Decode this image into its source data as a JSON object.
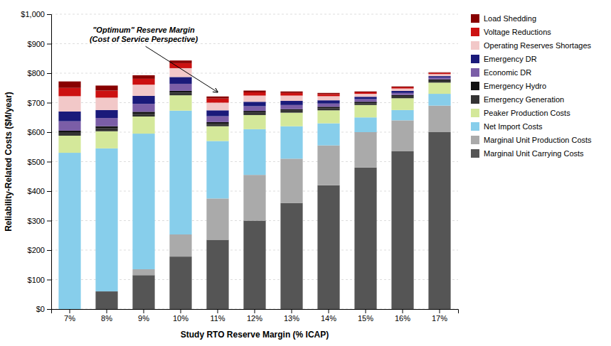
{
  "chart_data": {
    "type": "bar",
    "stacked": true,
    "categories": [
      "7%",
      "8%",
      "9%",
      "10%",
      "11%",
      "12%",
      "13%",
      "14%",
      "15%",
      "16%",
      "17%"
    ],
    "series": [
      {
        "name": "Marginal Unit Carrying Costs",
        "color": "#555555",
        "values": [
          0,
          60,
          115,
          178,
          235,
          300,
          360,
          420,
          480,
          535,
          600
        ]
      },
      {
        "name": "Marginal Unit Production Costs",
        "color": "#aaaaaa",
        "values": [
          0,
          0,
          20,
          75,
          140,
          155,
          150,
          135,
          120,
          105,
          90
        ]
      },
      {
        "name": "Net Import Costs",
        "color": "#87CEEB",
        "values": [
          530,
          485,
          460,
          420,
          195,
          155,
          110,
          75,
          50,
          35,
          40
        ]
      },
      {
        "name": "Peaker Production Costs",
        "color": "#d4e89a",
        "values": [
          58,
          58,
          58,
          52,
          50,
          48,
          46,
          44,
          42,
          40,
          38
        ]
      },
      {
        "name": "Emergency Generation",
        "color": "#333333",
        "values": [
          10,
          10,
          9,
          9,
          8,
          8,
          7,
          7,
          6,
          6,
          6
        ]
      },
      {
        "name": "Emergency Hydro",
        "color": "#111111",
        "values": [
          7,
          7,
          7,
          6,
          6,
          6,
          5,
          5,
          5,
          5,
          5
        ]
      },
      {
        "name": "Economic DR",
        "color": "#7b5ea7",
        "values": [
          32,
          28,
          27,
          24,
          20,
          16,
          14,
          11,
          9,
          7,
          6
        ]
      },
      {
        "name": "Emergency DR",
        "color": "#1a1a7a",
        "values": [
          33,
          27,
          27,
          23,
          20,
          15,
          14,
          11,
          8,
          7,
          5
        ]
      },
      {
        "name": "Operating Reserves Shortages",
        "color": "#f2c8c8",
        "values": [
          52,
          42,
          38,
          30,
          26,
          21,
          18,
          14,
          10,
          8,
          7
        ]
      },
      {
        "name": "Voltage Reductions",
        "color": "#cc1111",
        "values": [
          28,
          24,
          20,
          17,
          14,
          11,
          9,
          7,
          5,
          4,
          4
        ]
      },
      {
        "name": "Load Shedding",
        "color": "#880000",
        "values": [
          22,
          17,
          12,
          9,
          7,
          6,
          5,
          4,
          3,
          3,
          2
        ]
      }
    ],
    "xlabel": "Study RTO Reserve Margin (% ICAP)",
    "ylabel": "Reliability-Related Costs ($M/year)",
    "ylim": [
      0,
      1000
    ],
    "yticks": [
      {
        "value": 0,
        "label": "$0"
      },
      {
        "value": 100,
        "label": "$100"
      },
      {
        "value": 200,
        "label": "$200"
      },
      {
        "value": 300,
        "label": "$300"
      },
      {
        "value": 400,
        "label": "$400"
      },
      {
        "value": 500,
        "label": "$500"
      },
      {
        "value": 600,
        "label": "$600"
      },
      {
        "value": 700,
        "label": "$700"
      },
      {
        "value": 800,
        "label": "$800"
      },
      {
        "value": 900,
        "label": "$900"
      },
      {
        "value": 1000,
        "label": "$1,000"
      }
    ],
    "grid": true,
    "legend": "right",
    "annotations": [
      {
        "text": "\"Optimum\" Reserve Margin\n(Cost of Service Perspective)",
        "x": "11%"
      }
    ]
  }
}
